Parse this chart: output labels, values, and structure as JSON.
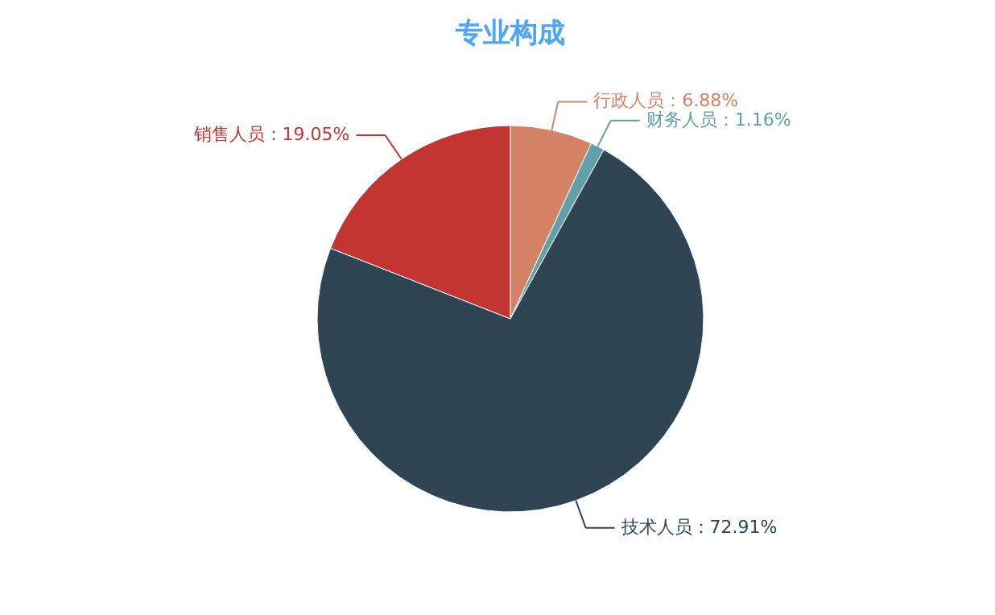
{
  "chart_data": {
    "type": "pie",
    "title": "专业构成",
    "categories": [
      "行政人员",
      "财务人员",
      "技术人员",
      "销售人员"
    ],
    "values": [
      6.88,
      1.16,
      72.91,
      19.05
    ],
    "colors": [
      "#d48265",
      "#61a0a8",
      "#2f4554",
      "#c23531"
    ],
    "value_labels": [
      "6.88%",
      "1.16%",
      "72.91%",
      "19.05%"
    ]
  }
}
